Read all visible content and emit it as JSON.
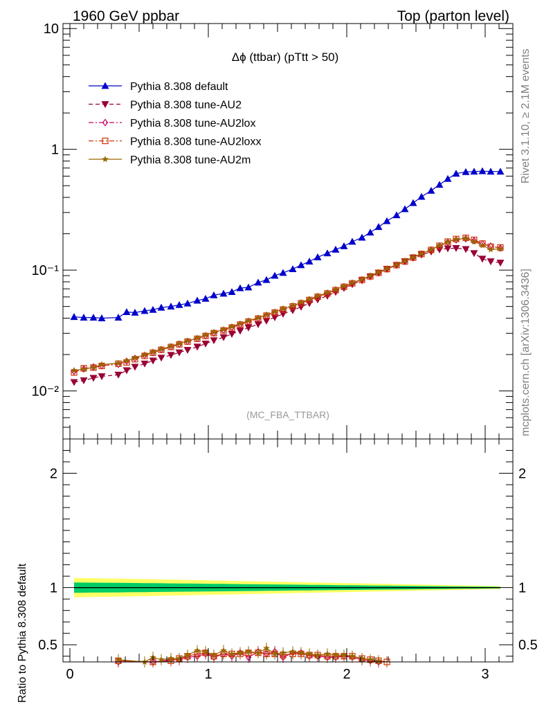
{
  "header": {
    "left": "1960 GeV ppbar",
    "right": "Top (parton level)"
  },
  "side": {
    "rivet": "Rivet 3.1.10, ≥ 2.1M events",
    "mcplots": "mcplots.cern.ch [arXiv:1306.3436]"
  },
  "chart_data": {
    "type": "line",
    "title": "Δϕ (ttbar) (pTtt > 50)",
    "analysis_label": "(MC_FBA_TTBAR)",
    "ylabel_ratio": "Ratio to Pythia 8.308 default",
    "x_ticks": [
      "0",
      "1",
      "2",
      "3"
    ],
    "xlim": [
      -0.05,
      3.2
    ],
    "main_ylim": [
      0.004,
      11
    ],
    "main_yscale": "log",
    "main_y_ticks": [
      {
        "v": 10,
        "label": "10"
      },
      {
        "v": 1,
        "label": "1"
      },
      {
        "v": 0.1,
        "label": "10⁻¹"
      },
      {
        "v": 0.01,
        "label": "10⁻²"
      }
    ],
    "ratio_ylim": [
      0.35,
      2.3
    ],
    "ratio_y_ticks": [
      "0.5",
      "1",
      "2"
    ],
    "ratio_band": {
      "inner_color": "#00cc66",
      "outer_color": "#ffff66"
    },
    "legend_position": "top-left",
    "x": [
      0.03,
      0.1,
      0.17,
      0.23,
      0.35,
      0.41,
      0.47,
      0.54,
      0.6,
      0.66,
      0.73,
      0.79,
      0.85,
      0.92,
      0.98,
      1.04,
      1.11,
      1.17,
      1.23,
      1.29,
      1.36,
      1.42,
      1.48,
      1.54,
      1.61,
      1.67,
      1.73,
      1.79,
      1.86,
      1.92,
      1.98,
      2.04,
      2.11,
      2.17,
      2.23,
      2.29,
      2.36,
      2.42,
      2.48,
      2.54,
      2.61,
      2.67,
      2.73,
      2.79,
      2.86,
      2.92,
      2.98,
      3.04,
      3.11
    ],
    "series": [
      {
        "name": "Pythia 8.308 default",
        "color": "#0000cc",
        "marker": "triangle-up",
        "dash": "solid",
        "values": [
          0.041,
          0.0405,
          0.0405,
          0.04,
          0.0405,
          0.045,
          0.0445,
          0.046,
          0.047,
          0.049,
          0.05,
          0.0515,
          0.053,
          0.056,
          0.058,
          0.062,
          0.064,
          0.066,
          0.071,
          0.072,
          0.079,
          0.083,
          0.09,
          0.095,
          0.102,
          0.11,
          0.118,
          0.128,
          0.138,
          0.148,
          0.158,
          0.172,
          0.186,
          0.205,
          0.228,
          0.255,
          0.285,
          0.32,
          0.36,
          0.405,
          0.455,
          0.51,
          0.57,
          0.63,
          0.65,
          0.655,
          0.66,
          0.655,
          0.655
        ]
      },
      {
        "name": "Pythia 8.308 tune-AU2",
        "color": "#990033",
        "marker": "triangle-down",
        "dash": "dashed",
        "values": [
          0.0118,
          0.0122,
          0.0128,
          0.0132,
          0.0136,
          0.0148,
          0.0158,
          0.0168,
          0.0178,
          0.0188,
          0.0198,
          0.0208,
          0.0218,
          0.0232,
          0.0246,
          0.0262,
          0.0278,
          0.0296,
          0.0314,
          0.0334,
          0.0356,
          0.038,
          0.0406,
          0.0434,
          0.0464,
          0.0496,
          0.0532,
          0.057,
          0.0612,
          0.0658,
          0.0708,
          0.0762,
          0.082,
          0.0882,
          0.095,
          0.102,
          0.11,
          0.118,
          0.126,
          0.134,
          0.142,
          0.148,
          0.151,
          0.152,
          0.149,
          0.138,
          0.124,
          0.118,
          0.115
        ]
      },
      {
        "name": "Pythia 8.308 tune-AU2lox",
        "color": "#cc0066",
        "marker": "diamond-open",
        "dash": "dashdot",
        "values": [
          0.0145,
          0.0152,
          0.0158,
          0.0162,
          0.0166,
          0.0176,
          0.0186,
          0.0197,
          0.0208,
          0.022,
          0.0232,
          0.0244,
          0.0257,
          0.0271,
          0.0286,
          0.0302,
          0.0318,
          0.0336,
          0.0355,
          0.0376,
          0.0398,
          0.0421,
          0.0446,
          0.0473,
          0.0502,
          0.0533,
          0.0567,
          0.0603,
          0.0642,
          0.0684,
          0.0729,
          0.0778,
          0.0831,
          0.0888,
          0.095,
          0.102,
          0.11,
          0.118,
          0.127,
          0.136,
          0.147,
          0.158,
          0.17,
          0.178,
          0.182,
          0.175,
          0.165,
          0.158,
          0.152
        ]
      },
      {
        "name": "Pythia 8.308 tune-AU2loxx",
        "color": "#cc3300",
        "marker": "square-open",
        "dash": "dashdot",
        "values": [
          0.0142,
          0.0154,
          0.0156,
          0.0161,
          0.0168,
          0.0172,
          0.0183,
          0.0195,
          0.0207,
          0.0219,
          0.0231,
          0.0243,
          0.0256,
          0.027,
          0.0285,
          0.0301,
          0.0317,
          0.0335,
          0.0354,
          0.0375,
          0.0397,
          0.042,
          0.0445,
          0.0472,
          0.0501,
          0.0532,
          0.0566,
          0.0602,
          0.0641,
          0.0683,
          0.0728,
          0.0777,
          0.083,
          0.0887,
          0.095,
          0.102,
          0.11,
          0.118,
          0.127,
          0.136,
          0.147,
          0.159,
          0.172,
          0.181,
          0.185,
          0.178,
          0.166,
          0.156,
          0.154
        ]
      },
      {
        "name": "Pythia 8.308 tune-AU2m",
        "color": "#996600",
        "marker": "star",
        "dash": "solid",
        "values": [
          0.0148,
          0.0151,
          0.0157,
          0.0165,
          0.017,
          0.0178,
          0.0188,
          0.0199,
          0.021,
          0.0222,
          0.0234,
          0.0247,
          0.026,
          0.0274,
          0.029,
          0.0306,
          0.0323,
          0.0341,
          0.036,
          0.0381,
          0.0403,
          0.0427,
          0.0452,
          0.0479,
          0.0508,
          0.054,
          0.0574,
          0.061,
          0.065,
          0.0692,
          0.0738,
          0.0787,
          0.084,
          0.0898,
          0.0962,
          0.103,
          0.111,
          0.119,
          0.128,
          0.137,
          0.148,
          0.16,
          0.172,
          0.18,
          0.183,
          0.172,
          0.16,
          0.148,
          0.15
        ]
      }
    ],
    "ratio_series": [
      {
        "name": "Pythia 8.308 tune-AU2",
        "color": "#990033",
        "x": [],
        "values": []
      },
      {
        "name": "Pythia 8.308 tune-AU2lox",
        "color": "#cc0066",
        "x": [
          0.35,
          0.6,
          0.73,
          0.79,
          0.85,
          0.92,
          0.98,
          1.04,
          1.11,
          1.17,
          1.23,
          1.29,
          1.36,
          1.42,
          1.48,
          1.54,
          1.61,
          1.67,
          1.73,
          1.79,
          1.86,
          1.92,
          1.98,
          2.04,
          2.11,
          2.17,
          2.23
        ],
        "values": [
          0.35,
          0.35,
          0.37,
          0.37,
          0.39,
          0.4,
          0.42,
          0.39,
          0.42,
          0.4,
          0.43,
          0.39,
          0.44,
          0.42,
          0.44,
          0.39,
          0.43,
          0.43,
          0.4,
          0.4,
          0.39,
          0.39,
          0.4,
          0.39,
          0.37,
          0.36,
          0.35
        ]
      },
      {
        "name": "Pythia 8.308 tune-AU2loxx",
        "color": "#cc3300",
        "x": [
          0.35,
          0.6,
          0.73,
          0.79,
          0.85,
          0.92,
          0.98,
          1.04,
          1.11,
          1.17,
          1.23,
          1.29,
          1.36,
          1.42,
          1.48,
          1.54,
          1.61,
          1.67,
          1.73,
          1.79,
          1.86,
          1.92,
          1.98,
          2.04,
          2.11,
          2.17,
          2.23,
          2.29
        ],
        "values": [
          0.36,
          0.35,
          0.36,
          0.38,
          0.4,
          0.42,
          0.43,
          0.4,
          0.42,
          0.42,
          0.42,
          0.43,
          0.43,
          0.42,
          0.42,
          0.41,
          0.42,
          0.42,
          0.41,
          0.41,
          0.4,
          0.4,
          0.4,
          0.4,
          0.38,
          0.37,
          0.36,
          0.35
        ]
      },
      {
        "name": "Pythia 8.308 tune-AU2m",
        "color": "#996600",
        "x": [
          0.35,
          0.54,
          0.6,
          0.66,
          0.73,
          0.79,
          0.85,
          0.92,
          0.98,
          1.04,
          1.11,
          1.17,
          1.23,
          1.29,
          1.36,
          1.42,
          1.48,
          1.54,
          1.61,
          1.67,
          1.73,
          1.79,
          1.86,
          1.92,
          1.98,
          2.04,
          2.11,
          2.17,
          2.23
        ],
        "values": [
          0.37,
          0.35,
          0.39,
          0.37,
          0.38,
          0.38,
          0.41,
          0.45,
          0.44,
          0.41,
          0.45,
          0.42,
          0.43,
          0.44,
          0.43,
          0.47,
          0.42,
          0.43,
          0.44,
          0.43,
          0.42,
          0.41,
          0.42,
          0.41,
          0.41,
          0.4,
          0.38,
          0.37,
          0.36
        ]
      }
    ]
  }
}
